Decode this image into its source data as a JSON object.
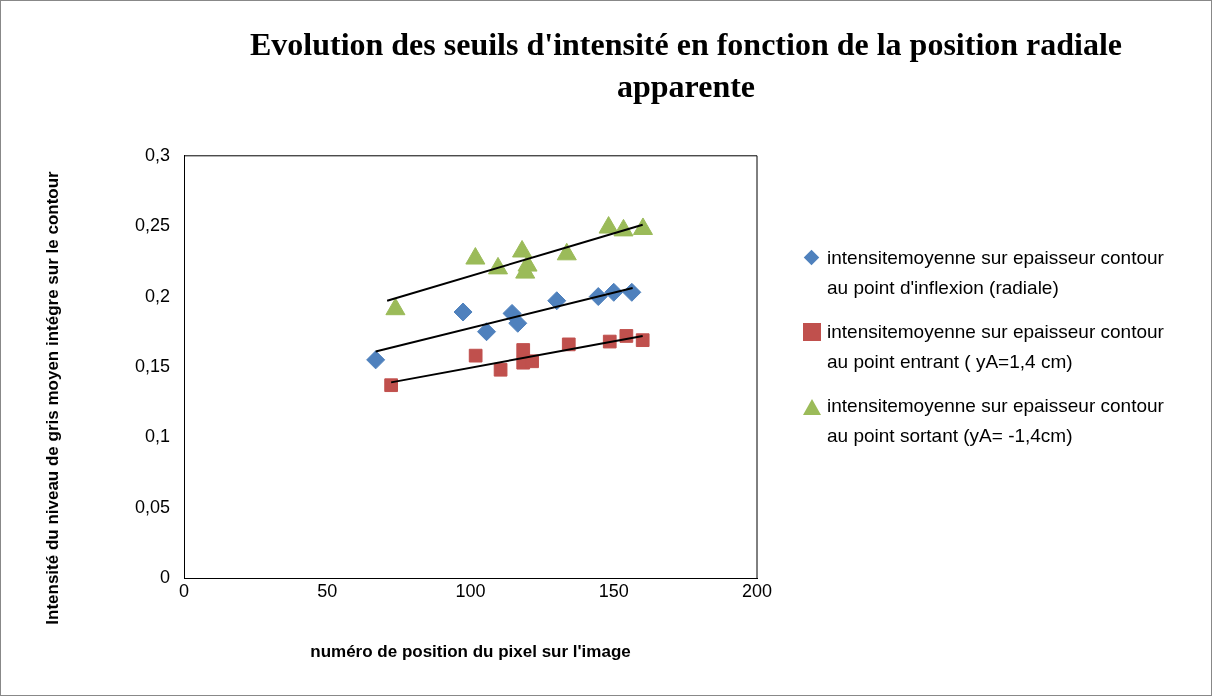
{
  "chart_data": {
    "type": "scatter",
    "title": "Evolution des seuils d'intensité en fonction de la position radiale apparente",
    "xlabel": "numéro de position du pixel sur l'image",
    "ylabel": "Intensité du niveau de gris moyen intégre sur le contour",
    "xlim": [
      0,
      200
    ],
    "xticks": [
      0,
      50,
      100,
      150,
      200
    ],
    "ylim": [
      0,
      0.3
    ],
    "yticks": [
      {
        "value": 0,
        "label": "0"
      },
      {
        "value": 0.05,
        "label": "0,05"
      },
      {
        "value": 0.1,
        "label": "0,1"
      },
      {
        "value": 0.15,
        "label": "0,15"
      },
      {
        "value": 0.2,
        "label": "0,2"
      },
      {
        "value": 0.25,
        "label": "0,25"
      },
      {
        "value": 0.3,
        "label": "0,3"
      }
    ],
    "grid": false,
    "legend": "right",
    "series": [
      {
        "name": "intensitemoyenne sur epaisseur contour au point d'inflexion (radiale)",
        "marker": "diamond",
        "color": "#4f81bd",
        "x": [
          66.9,
          97.4,
          105.6,
          114.5,
          116.5,
          130.1,
          144.6,
          150.0,
          156.3
        ],
        "values": [
          0.155,
          0.189,
          0.175,
          0.188,
          0.181,
          0.197,
          0.2,
          0.203,
          0.203
        ]
      },
      {
        "name": "intensitemoyenne sur epaisseur contour au point  entrant ( yA=1,4 cm)",
        "marker": "square",
        "color": "#c0504d",
        "x": [
          72.3,
          101.8,
          110.5,
          118.4,
          118.4,
          121.5,
          134.3,
          148.6,
          154.4,
          160.1
        ],
        "values": [
          0.137,
          0.158,
          0.148,
          0.162,
          0.153,
          0.154,
          0.166,
          0.168,
          0.172,
          0.169
        ]
      },
      {
        "name": "intensitemoyenne sur epaisseur contour au point sortant (yA= -1,4cm)",
        "marker": "triangle",
        "color": "#9bbb59",
        "x": [
          73.8,
          101.7,
          109.6,
          118.0,
          119.9,
          119.1,
          133.6,
          148.2,
          153.4,
          160.2
        ],
        "values": [
          0.191,
          0.227,
          0.22,
          0.232,
          0.222,
          0.217,
          0.23,
          0.249,
          0.247,
          0.248
        ]
      },
      {
        "type": "line",
        "marker": "none",
        "color": "#000000",
        "x": [
          66.9,
          156.6
        ],
        "values": [
          0.161,
          0.206
        ]
      },
      {
        "type": "line",
        "marker": "none",
        "color": "#000000",
        "x": [
          72.3,
          160.1
        ],
        "values": [
          0.139,
          0.172
        ]
      },
      {
        "type": "line",
        "marker": "none",
        "color": "#000000",
        "x": [
          70.9,
          160.1
        ],
        "values": [
          0.197,
          0.251
        ]
      }
    ]
  }
}
